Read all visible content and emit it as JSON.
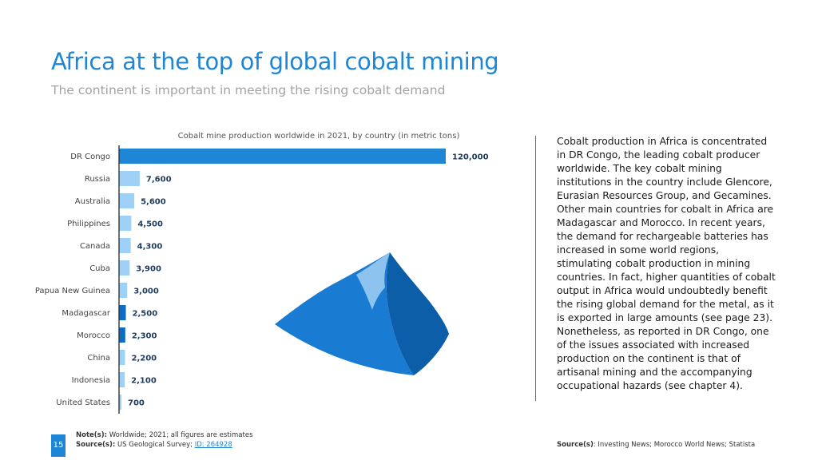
{
  "header": {
    "title": "Africa at the top of global cobalt mining",
    "subtitle": "The continent is important in meeting the rising cobalt demand"
  },
  "chart_data": {
    "type": "bar",
    "orientation": "horizontal",
    "title": "Cobalt mine production worldwide in 2021, by country (in metric tons)",
    "categories": [
      "DR Congo",
      "Russia",
      "Australia",
      "Philippines",
      "Canada",
      "Cuba",
      "Papua New Guinea",
      "Madagascar",
      "Morocco",
      "China",
      "Indonesia",
      "United States"
    ],
    "values": [
      120000,
      7600,
      5600,
      4500,
      4300,
      3900,
      3000,
      2500,
      2300,
      2200,
      2100,
      700
    ],
    "value_labels": [
      "120,000",
      "7,600",
      "5,600",
      "4,500",
      "4,300",
      "3,900",
      "3,000",
      "2,500",
      "2,300",
      "2,200",
      "2,100",
      "700"
    ],
    "xlim": [
      0,
      120000
    ],
    "grid": false,
    "colors": {
      "highlight": "#1f86d6",
      "africa": "#0f6cbf",
      "other": "#9fd0f5",
      "axis": "#333333"
    },
    "bar_colors": [
      "highlight",
      "other",
      "other",
      "other",
      "other",
      "other",
      "other",
      "africa",
      "africa",
      "other",
      "other",
      "other"
    ]
  },
  "description": "Cobalt production in Africa is concentrated in DR Congo, the leading cobalt producer worldwide. The key cobalt mining institutions in the country include Glencore, Eurasian Resources Group, and Gecamines. Other main countries for cobalt in Africa are Madagascar and Morocco. In recent years, the demand for rechargeable batteries has increased in some world regions, stimulating cobalt production in mining countries. In fact, higher quantities of cobalt output in Africa would undoubtedly benefit the rising global demand for the metal, as it is exported in large amounts (see page 23). Nonetheless, as reported in DR Congo, one of the issues associated with increased production on the continent is that of artisanal mining and the accompanying occupational hazards (see chapter 4).",
  "illustration": {
    "icon": "mountain-icon",
    "colors": [
      "#0d5ea8",
      "#1a7bd2",
      "#8cc4ef"
    ]
  },
  "footer": {
    "page_number": "15",
    "note_label": "Note(s):",
    "note_text": " Worldwide; 2021; all figures are estimates",
    "source_label": "Source(s):",
    "source_text": " US Geological Survey; ",
    "source_link": "ID: 264928",
    "right_source_label": "Source(s)",
    "right_source_text": ": Investing News; Morocco World News; Statista"
  }
}
